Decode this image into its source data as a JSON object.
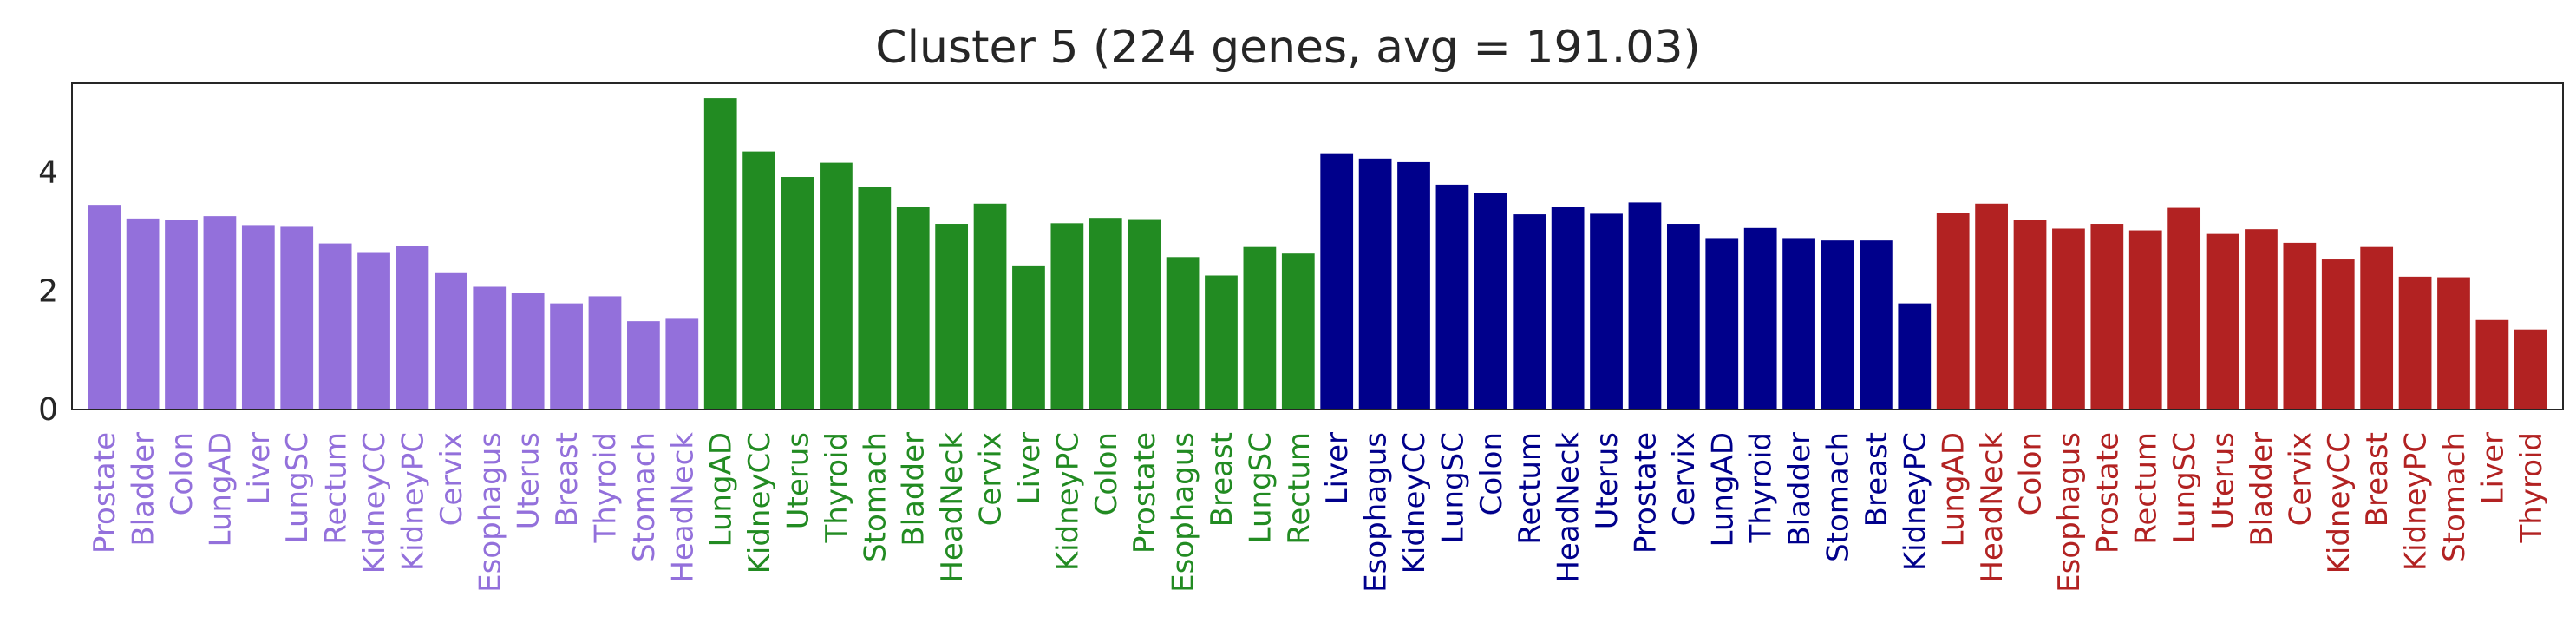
{
  "chart_data": {
    "type": "bar",
    "title": "Cluster 5 (224 genes,  avg = 191.03)",
    "xlabel": "",
    "ylabel": "",
    "ylim": [
      0,
      5.5
    ],
    "yticks": [
      "0",
      "2",
      "4"
    ],
    "ytick_values": [
      0,
      2,
      4
    ],
    "grid": false,
    "legend": "none",
    "groups": [
      {
        "color": "#9370DB",
        "categories": [
          "Prostate",
          "Bladder",
          "Colon",
          "LungAD",
          "Liver",
          "LungSC",
          "Rectum",
          "KidneyCC",
          "KidneyPC",
          "Cervix",
          "Esophagus",
          "Uterus",
          "Breast",
          "Thyroid",
          "Stomach",
          "HeadNeck"
        ],
        "values": [
          3.45,
          3.22,
          3.19,
          3.26,
          3.11,
          3.08,
          2.8,
          2.64,
          2.76,
          2.3,
          2.07,
          1.96,
          1.79,
          1.91,
          1.49,
          1.53
        ]
      },
      {
        "color": "#228B22",
        "categories": [
          "LungAD",
          "KidneyCC",
          "Uterus",
          "Thyroid",
          "Stomach",
          "Bladder",
          "HeadNeck",
          "Cervix",
          "Liver",
          "KidneyPC",
          "Colon",
          "Prostate",
          "Esophagus",
          "Breast",
          "LungSC",
          "Rectum"
        ],
        "values": [
          5.25,
          4.35,
          3.92,
          4.16,
          3.75,
          3.42,
          3.13,
          3.47,
          2.43,
          3.14,
          3.23,
          3.21,
          2.57,
          2.26,
          2.74,
          2.63
        ]
      },
      {
        "color": "#00008B",
        "categories": [
          "Liver",
          "Esophagus",
          "KidneyCC",
          "LungSC",
          "Colon",
          "Rectum",
          "HeadNeck",
          "Uterus",
          "Prostate",
          "Cervix",
          "LungAD",
          "Thyroid",
          "Bladder",
          "Stomach",
          "Breast",
          "KidneyPC"
        ],
        "values": [
          4.32,
          4.23,
          4.17,
          3.79,
          3.65,
          3.29,
          3.41,
          3.3,
          3.49,
          3.13,
          2.89,
          3.06,
          2.89,
          2.85,
          2.85,
          1.79
        ]
      },
      {
        "color": "#B22222",
        "categories": [
          "LungAD",
          "HeadNeck",
          "Colon",
          "Esophagus",
          "Prostate",
          "Rectum",
          "LungSC",
          "Uterus",
          "Bladder",
          "Cervix",
          "KidneyCC",
          "Breast",
          "KidneyPC",
          "Stomach",
          "Liver",
          "Thyroid"
        ],
        "values": [
          3.31,
          3.47,
          3.19,
          3.05,
          3.13,
          3.02,
          3.4,
          2.96,
          3.04,
          2.81,
          2.53,
          2.74,
          2.24,
          2.23,
          1.51,
          1.35
        ]
      }
    ]
  }
}
